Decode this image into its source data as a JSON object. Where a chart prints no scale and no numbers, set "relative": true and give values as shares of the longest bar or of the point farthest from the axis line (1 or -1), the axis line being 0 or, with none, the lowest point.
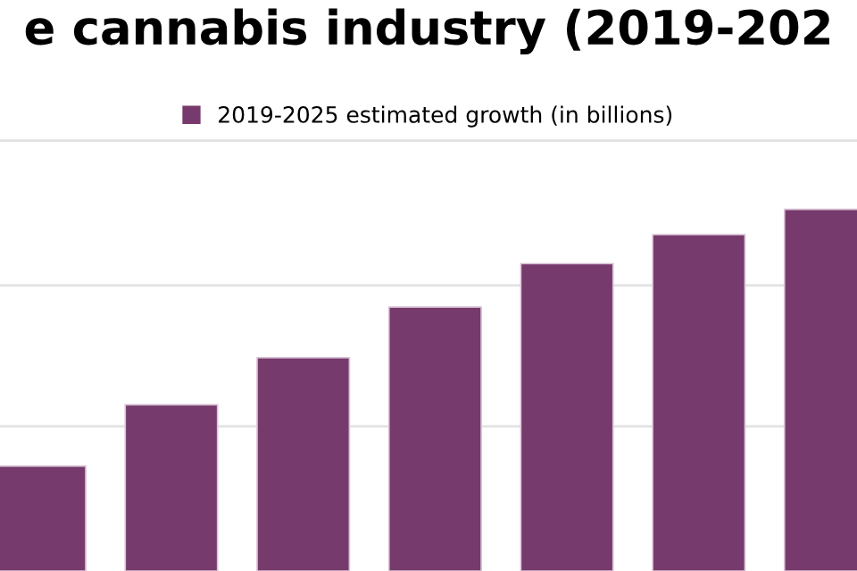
{
  "chart_data": {
    "type": "bar",
    "title": "e cannabis industry (2019-202",
    "relative": true,
    "categories": [
      null,
      null,
      null,
      null,
      null,
      null,
      null
    ],
    "series": [
      {
        "name": "2019-2025 estimated growth (in billions)",
        "color": "#763a6c",
        "values": [
          0.29,
          0.46,
          0.59,
          0.73,
          0.85,
          0.93,
          1
        ]
      }
    ],
    "ref_lines": [
      {
        "axis": "y",
        "value": 0.4,
        "color": "#e2e2e2"
      },
      {
        "axis": "y",
        "value": 0.79,
        "color": "#e2e2e2"
      },
      {
        "axis": "y",
        "value": 1.19,
        "color": "#e2e2e2"
      }
    ],
    "legend": "top"
  }
}
